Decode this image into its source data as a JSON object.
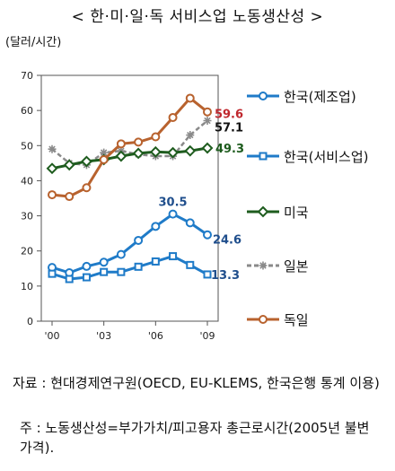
{
  "title": "< 한·미·일·독 서비스업 노동생산성 >",
  "unit": "(달러/시간)",
  "chart_data": {
    "type": "line",
    "x": [
      2000,
      2001,
      2002,
      2003,
      2004,
      2005,
      2006,
      2007,
      2008,
      2009
    ],
    "xticks": [
      "'00",
      "'03",
      "'06",
      "'09"
    ],
    "xtick_values": [
      2000,
      2003,
      2006,
      2009
    ],
    "ylim": [
      0,
      70
    ],
    "yticks": [
      0,
      10,
      20,
      30,
      40,
      50,
      60,
      70
    ],
    "legend_position": "right",
    "series": [
      {
        "name": "한국(제조업)",
        "color": "#1f7bc8",
        "marker": "circle",
        "dash": false,
        "values": [
          15.3,
          13.8,
          15.6,
          16.8,
          19.0,
          23.0,
          27.0,
          30.5,
          28.0,
          24.6
        ]
      },
      {
        "name": "한국(서비스업)",
        "color": "#1f7bc8",
        "marker": "square",
        "dash": false,
        "values": [
          13.5,
          12.0,
          12.5,
          14.0,
          14.0,
          15.5,
          17.0,
          18.5,
          16.0,
          13.3
        ]
      },
      {
        "name": "미국",
        "color": "#1e5c1e",
        "marker": "diamond",
        "dash": false,
        "values": [
          43.5,
          44.5,
          45.5,
          46.0,
          47.0,
          47.8,
          48.2,
          48.0,
          48.5,
          49.3
        ]
      },
      {
        "name": "일본",
        "color": "#8a8a8a",
        "marker": "star",
        "dash": true,
        "values": [
          49.0,
          45.0,
          44.5,
          48.0,
          48.5,
          47.5,
          47.0,
          47.0,
          53.0,
          57.1
        ]
      },
      {
        "name": "독일",
        "color": "#b8622e",
        "marker": "circle",
        "dash": false,
        "values": [
          36.0,
          35.5,
          38.0,
          46.0,
          50.5,
          51.0,
          52.5,
          58.0,
          63.5,
          59.6
        ]
      }
    ],
    "data_labels": [
      {
        "text": "59.6",
        "color": "#c0282e"
      },
      {
        "text": "57.1",
        "color": "#111111"
      },
      {
        "text": "49.3",
        "color": "#1e5c1e"
      },
      {
        "text": "30.5",
        "color": "#1f4e8c"
      },
      {
        "text": "24.6",
        "color": "#1f4e8c"
      },
      {
        "text": "13.3",
        "color": "#1f4e8c"
      }
    ]
  },
  "source_text": "자료 : 현대경제연구원(OECD, EU-KLEMS, 한국은행 통계 이용)",
  "note_text": "주 : 노동생산성=부가가치/피고용자 총근로시간(2005년 불변가격)."
}
